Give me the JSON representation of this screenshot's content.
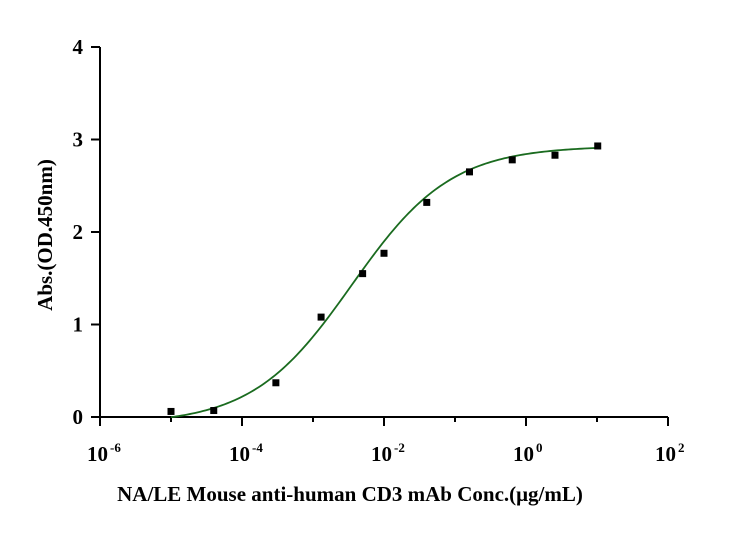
{
  "chart_data": {
    "type": "scatter",
    "title": "",
    "xlabel": "NA/LE Mouse anti-human CD3 mAb Conc.(μg/mL)",
    "ylabel": "Abs.(OD.450nm)",
    "xscale": "log",
    "xlim": [
      1e-06,
      100
    ],
    "ylim": [
      0,
      4
    ],
    "x_ticks": [
      {
        "base": "10",
        "exp": "-6",
        "value": 1e-06
      },
      {
        "base": "10",
        "exp": "-4",
        "value": 0.0001
      },
      {
        "base": "10",
        "exp": "-2",
        "value": 0.01
      },
      {
        "base": "10",
        "exp": "0",
        "value": 1
      },
      {
        "base": "10",
        "exp": "2",
        "value": 100
      }
    ],
    "y_ticks": [
      "0",
      "1",
      "2",
      "3",
      "4"
    ],
    "y_tick_values": [
      0,
      1,
      2,
      3,
      4
    ],
    "grid": false,
    "marker_color": "#000000",
    "fit_color": "#1a6b1f",
    "series": [
      {
        "name": "",
        "points": [
          {
            "x": 1e-05,
            "y": 0.06
          },
          {
            "x": 4e-05,
            "y": 0.07
          },
          {
            "x": 0.0003,
            "y": 0.37
          },
          {
            "x": 0.0013,
            "y": 1.08
          },
          {
            "x": 0.005,
            "y": 1.55
          },
          {
            "x": 0.01,
            "y": 1.77
          },
          {
            "x": 0.04,
            "y": 2.32
          },
          {
            "x": 0.16,
            "y": 2.65
          },
          {
            "x": 0.64,
            "y": 2.78
          },
          {
            "x": 2.56,
            "y": 2.83
          },
          {
            "x": 10.24,
            "y": 2.93
          }
        ],
        "fit": {
          "bottom": -0.08,
          "top": 2.93,
          "ec50": 0.0035,
          "hill": 0.62,
          "x_range": [
            1e-05,
            10.24
          ]
        }
      }
    ]
  }
}
